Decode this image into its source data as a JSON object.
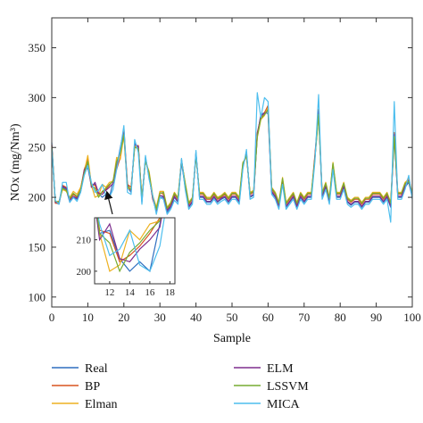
{
  "chart_data": {
    "type": "line",
    "xlabel": "Sample",
    "ylabel": "NOx (mg/Nm³)",
    "xlim": [
      0,
      100
    ],
    "ylim": [
      90,
      380
    ],
    "xticks": [
      0,
      10,
      20,
      30,
      40,
      50,
      60,
      70,
      80,
      90,
      100
    ],
    "yticks": [
      100,
      150,
      200,
      250,
      300,
      350
    ],
    "grid": false,
    "legend_position": "below",
    "x": [
      0,
      1,
      2,
      3,
      4,
      5,
      6,
      7,
      8,
      9,
      10,
      11,
      12,
      13,
      14,
      15,
      16,
      17,
      18,
      19,
      20,
      21,
      22,
      23,
      24,
      25,
      26,
      27,
      28,
      29,
      30,
      31,
      32,
      33,
      34,
      35,
      36,
      37,
      38,
      39,
      40,
      41,
      42,
      43,
      44,
      45,
      46,
      47,
      48,
      49,
      50,
      51,
      52,
      53,
      54,
      55,
      56,
      57,
      58,
      59,
      60,
      61,
      62,
      63,
      64,
      65,
      66,
      67,
      68,
      69,
      70,
      71,
      72,
      73,
      74,
      75,
      76,
      77,
      78,
      79,
      80,
      81,
      82,
      83,
      84,
      85,
      86,
      87,
      88,
      89,
      90,
      91,
      92,
      93,
      94,
      95,
      96,
      97,
      98,
      99,
      100
    ],
    "series": [
      {
        "name": "Real",
        "color": "#2f6fbf",
        "values": [
          255,
          195,
          193,
          210,
          208,
          195,
          200,
          198,
          205,
          225,
          230,
          212,
          213,
          204,
          200,
          203,
          200,
          215,
          230,
          250,
          268,
          210,
          205,
          255,
          250,
          195,
          240,
          220,
          200,
          185,
          200,
          200,
          185,
          190,
          200,
          195,
          235,
          210,
          190,
          195,
          245,
          200,
          200,
          195,
          195,
          200,
          195,
          198,
          200,
          195,
          200,
          200,
          195,
          230,
          245,
          200,
          202,
          262,
          283,
          285,
          284,
          205,
          200,
          190,
          215,
          190,
          195,
          200,
          190,
          200,
          195,
          200,
          200,
          240,
          285,
          200,
          210,
          195,
          230,
          200,
          200,
          210,
          195,
          192,
          195,
          195,
          190,
          195,
          195,
          200,
          200,
          200,
          195,
          200,
          190,
          260,
          200,
          200,
          210,
          215,
          200
        ]
      },
      {
        "name": "BP",
        "color": "#d9541e",
        "values": [
          253,
          194,
          194,
          212,
          210,
          198,
          203,
          200,
          208,
          228,
          238,
          213,
          212,
          203,
          205,
          208,
          212,
          217,
          228,
          240,
          270,
          213,
          210,
          250,
          252,
          198,
          238,
          223,
          198,
          188,
          205,
          203,
          188,
          193,
          203,
          198,
          238,
          213,
          193,
          198,
          243,
          203,
          203,
          198,
          198,
          203,
          198,
          200,
          203,
          198,
          203,
          203,
          198,
          233,
          243,
          203,
          205,
          265,
          280,
          285,
          292,
          208,
          203,
          193,
          218,
          193,
          198,
          203,
          193,
          203,
          198,
          203,
          203,
          243,
          288,
          203,
          213,
          198,
          233,
          203,
          203,
          213,
          198,
          195,
          198,
          198,
          193,
          198,
          198,
          203,
          203,
          203,
          198,
          203,
          193,
          265,
          203,
          203,
          213,
          220,
          203
        ]
      },
      {
        "name": "Elman",
        "color": "#edb120",
        "values": [
          250,
          196,
          196,
          208,
          206,
          200,
          206,
          203,
          210,
          226,
          242,
          212,
          200,
          202,
          213,
          210,
          215,
          216,
          240,
          238,
          262,
          210,
          207,
          252,
          248,
          200,
          236,
          226,
          202,
          190,
          206,
          206,
          190,
          195,
          205,
          200,
          236,
          215,
          195,
          200,
          241,
          205,
          205,
          200,
          200,
          205,
          200,
          202,
          205,
          200,
          205,
          205,
          200,
          235,
          240,
          205,
          207,
          260,
          278,
          282,
          290,
          210,
          205,
          195,
          220,
          195,
          200,
          205,
          195,
          205,
          200,
          205,
          205,
          240,
          282,
          205,
          215,
          200,
          235,
          205,
          205,
          215,
          200,
          197,
          200,
          200,
          195,
          200,
          200,
          205,
          205,
          205,
          200,
          205,
          195,
          262,
          205,
          205,
          215,
          218,
          205
        ]
      },
      {
        "name": "ELM",
        "color": "#7e2f8e",
        "values": [
          252,
          195,
          195,
          211,
          209,
          197,
          201,
          199,
          206,
          227,
          234,
          210,
          215,
          204,
          203,
          207,
          210,
          214,
          232,
          246,
          265,
          212,
          207,
          253,
          251,
          197,
          239,
          221,
          199,
          186,
          202,
          201,
          187,
          191,
          201,
          196,
          237,
          211,
          191,
          196,
          244,
          201,
          201,
          196,
          196,
          201,
          196,
          199,
          201,
          196,
          201,
          201,
          196,
          231,
          244,
          201,
          203,
          263,
          282,
          284,
          287,
          206,
          201,
          191,
          216,
          191,
          196,
          201,
          191,
          201,
          196,
          201,
          201,
          241,
          286,
          201,
          211,
          196,
          231,
          201,
          201,
          211,
          196,
          193,
          196,
          196,
          191,
          196,
          196,
          201,
          201,
          201,
          196,
          201,
          191,
          263,
          201,
          201,
          211,
          217,
          201
        ]
      },
      {
        "name": "LSSVM",
        "color": "#77ac30",
        "values": [
          251,
          196,
          195,
          209,
          207,
          199,
          204,
          201,
          207,
          224,
          236,
          212,
          209,
          200,
          206,
          209,
          213,
          216,
          236,
          244,
          263,
          211,
          208,
          250,
          249,
          199,
          237,
          224,
          201,
          188,
          204,
          205,
          189,
          194,
          204,
          199,
          237,
          214,
          194,
          199,
          242,
          204,
          204,
          199,
          199,
          204,
          199,
          201,
          204,
          199,
          204,
          204,
          199,
          234,
          242,
          204,
          206,
          261,
          279,
          283,
          288,
          209,
          204,
          194,
          219,
          194,
          199,
          204,
          194,
          204,
          199,
          204,
          204,
          239,
          283,
          204,
          214,
          199,
          234,
          204,
          204,
          214,
          199,
          196,
          199,
          199,
          194,
          199,
          199,
          204,
          204,
          204,
          199,
          204,
          194,
          261,
          204,
          204,
          214,
          216,
          204
        ]
      },
      {
        "name": "MICA",
        "color": "#4dbeee",
        "values": [
          249,
          197,
          193,
          215,
          215,
          195,
          200,
          196,
          205,
          222,
          232,
          215,
          205,
          207,
          213,
          202,
          200,
          208,
          228,
          248,
          272,
          205,
          203,
          258,
          245,
          193,
          242,
          218,
          202,
          183,
          200,
          198,
          183,
          188,
          197,
          193,
          239,
          208,
          188,
          193,
          247,
          198,
          198,
          193,
          193,
          198,
          193,
          196,
          198,
          193,
          198,
          198,
          193,
          228,
          248,
          198,
          200,
          305,
          280,
          300,
          296,
          203,
          198,
          188,
          213,
          188,
          193,
          198,
          188,
          198,
          193,
          198,
          198,
          236,
          303,
          198,
          208,
          193,
          228,
          198,
          198,
          208,
          193,
          190,
          193,
          193,
          188,
          193,
          193,
          198,
          198,
          198,
          193,
          198,
          175,
          296,
          198,
          198,
          208,
          222,
          198
        ]
      }
    ],
    "inset": {
      "xlim": [
        10.5,
        18.5
      ],
      "ylim": [
        196,
        217
      ],
      "xticks": [
        12,
        14,
        16,
        18
      ],
      "yticks": [
        200,
        210
      ],
      "points_to_x": 15,
      "points_to_y": 205
    }
  }
}
